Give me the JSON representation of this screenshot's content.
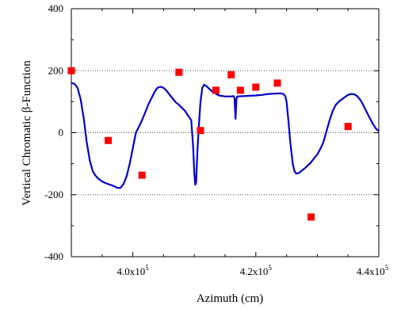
{
  "chart_data": {
    "type": "scatter",
    "xlabel": "Azimuth (cm)",
    "ylabel": "Vertical  Chromatic β-Function",
    "xlim": [
      390000,
      440000
    ],
    "ylim": [
      -400,
      400
    ],
    "x_ticks": [
      {
        "value": 400000,
        "mantissa": "4.0x10",
        "exp": "5"
      },
      {
        "value": 420000,
        "mantissa": "4.2x10",
        "exp": "5"
      },
      {
        "value": 440000,
        "mantissa": "4.4x10",
        "exp": "5"
      }
    ],
    "y_ticks": [
      {
        "value": 400,
        "label": "400"
      },
      {
        "value": 200,
        "label": "200"
      },
      {
        "value": 0,
        "label": "0"
      },
      {
        "value": -200,
        "label": "-200"
      },
      {
        "value": -400,
        "label": "-400"
      }
    ],
    "grid": {
      "y_lines_at": [
        200,
        0,
        -200
      ],
      "style": "dotted"
    },
    "colors": {
      "line": "#0000cc",
      "points": "#ff0000",
      "grid": "#555555"
    },
    "series": [
      {
        "kind": "line",
        "points": [
          [
            390000,
            160
          ],
          [
            390500,
            158
          ],
          [
            391000,
            145
          ],
          [
            391500,
            110
          ],
          [
            392000,
            50
          ],
          [
            392500,
            -30
          ],
          [
            393000,
            -90
          ],
          [
            393500,
            -125
          ],
          [
            394000,
            -140
          ],
          [
            394500,
            -150
          ],
          [
            395000,
            -157
          ],
          [
            395500,
            -162
          ],
          [
            396000,
            -166
          ],
          [
            396500,
            -169
          ],
          [
            397000,
            -173
          ],
          [
            397500,
            -178
          ],
          [
            398000,
            -178
          ],
          [
            398500,
            -165
          ],
          [
            399000,
            -140
          ],
          [
            399500,
            -100
          ],
          [
            400000,
            -50
          ],
          [
            400500,
            0
          ],
          [
            401000,
            20
          ],
          [
            401500,
            40
          ],
          [
            402000,
            65
          ],
          [
            402500,
            90
          ],
          [
            403000,
            110
          ],
          [
            403500,
            130
          ],
          [
            404000,
            145
          ],
          [
            404500,
            148
          ],
          [
            405000,
            145
          ],
          [
            405500,
            135
          ],
          [
            406000,
            122
          ],
          [
            406500,
            110
          ],
          [
            407000,
            98
          ],
          [
            407500,
            90
          ],
          [
            408000,
            80
          ],
          [
            408500,
            70
          ],
          [
            409000,
            55
          ],
          [
            409500,
            40
          ],
          [
            409800,
            -40
          ],
          [
            410000,
            -130
          ],
          [
            410150,
            -168
          ],
          [
            410300,
            -160
          ],
          [
            410500,
            -60
          ],
          [
            410800,
            40
          ],
          [
            411000,
            100
          ],
          [
            411300,
            145
          ],
          [
            411600,
            155
          ],
          [
            412000,
            150
          ],
          [
            412500,
            140
          ],
          [
            413000,
            132
          ],
          [
            413500,
            126
          ],
          [
            414000,
            120
          ],
          [
            415000,
            117
          ],
          [
            416000,
            117
          ],
          [
            416400,
            118
          ],
          [
            416550,
            110
          ],
          [
            416700,
            45
          ],
          [
            416850,
            110
          ],
          [
            417000,
            117
          ],
          [
            418000,
            118
          ],
          [
            419000,
            119
          ],
          [
            420000,
            120
          ],
          [
            421000,
            122
          ],
          [
            422000,
            125
          ],
          [
            423000,
            126
          ],
          [
            424000,
            127
          ],
          [
            424500,
            125
          ],
          [
            424800,
            118
          ],
          [
            425000,
            100
          ],
          [
            425300,
            40
          ],
          [
            425600,
            -30
          ],
          [
            426000,
            -100
          ],
          [
            426300,
            -125
          ],
          [
            426600,
            -132
          ],
          [
            427000,
            -130
          ],
          [
            427500,
            -122
          ],
          [
            428000,
            -114
          ],
          [
            428500,
            -105
          ],
          [
            429000,
            -95
          ],
          [
            429500,
            -82
          ],
          [
            430000,
            -70
          ],
          [
            430500,
            -52
          ],
          [
            431000,
            -30
          ],
          [
            431500,
            5
          ],
          [
            432000,
            40
          ],
          [
            432500,
            70
          ],
          [
            433000,
            90
          ],
          [
            433500,
            100
          ],
          [
            434000,
            108
          ],
          [
            434500,
            115
          ],
          [
            435000,
            122
          ],
          [
            435500,
            125
          ],
          [
            436000,
            124
          ],
          [
            436500,
            118
          ],
          [
            437000,
            106
          ],
          [
            437500,
            88
          ],
          [
            438000,
            68
          ],
          [
            438500,
            48
          ],
          [
            439000,
            30
          ],
          [
            439500,
            14
          ],
          [
            440000,
            5
          ]
        ]
      },
      {
        "kind": "points",
        "points": [
          [
            390000,
            200
          ],
          [
            396000,
            -25
          ],
          [
            401500,
            -137
          ],
          [
            407500,
            195
          ],
          [
            411000,
            7
          ],
          [
            413500,
            137
          ],
          [
            416000,
            187
          ],
          [
            417500,
            137
          ],
          [
            420000,
            147
          ],
          [
            423500,
            160
          ],
          [
            429000,
            -272
          ],
          [
            435000,
            20
          ]
        ]
      }
    ]
  }
}
